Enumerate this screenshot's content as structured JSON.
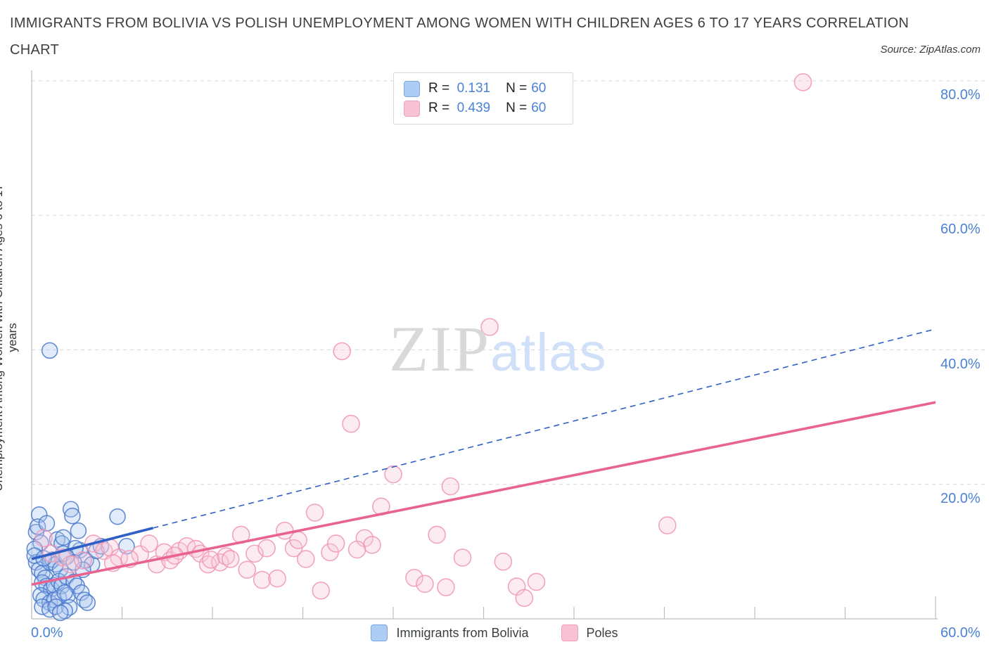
{
  "header": {
    "title": "IMMIGRANTS FROM BOLIVIA VS POLISH UNEMPLOYMENT AMONG WOMEN WITH CHILDREN AGES 6 TO 17 YEARS CORRELATION",
    "subtitle": "CHART",
    "source": "Source: ZipAtlas.com"
  },
  "watermark": {
    "part1": "ZIP",
    "part2": "atlas"
  },
  "stats_legend": {
    "rows": [
      {
        "series": "Immigrants from Bolivia",
        "r_label": "R =",
        "r_value": "0.131",
        "n_label": "N =",
        "n_value": "60"
      },
      {
        "series": "Poles",
        "r_label": "R =",
        "r_value": "0.439",
        "n_label": "N =",
        "n_value": "60"
      }
    ]
  },
  "bottom_legend": {
    "items": [
      {
        "label": "Immigrants from Bolivia",
        "color": "blue"
      },
      {
        "label": "Poles",
        "color": "pink"
      }
    ]
  },
  "axes": {
    "y_title": "Unemployment Among Women with Children Ages 6 to 17 years",
    "x_min_label": "0.0%",
    "x_max_label": "60.0%",
    "y_tick_labels": [
      "20.0%",
      "40.0%",
      "60.0%",
      "80.0%"
    ]
  },
  "colors": {
    "accent_blue": "#4b82d6",
    "point_blue_stroke": "#4a79cc",
    "point_blue_fill": "#a8c6ee",
    "point_pink_stroke": "#f095b5",
    "point_pink_fill": "#f7c9da",
    "trend_blue": "#2f5fc4",
    "trend_pink": "#e8648f",
    "gridline": "#d8d8d8",
    "axis_line": "#bdbdbd",
    "title_text": "#3c4043"
  },
  "chart_data": {
    "type": "scatter",
    "title": "Immigrants from Bolivia vs Polish Unemployment Among Women with Children Ages 6 to 17 years",
    "xlabel": "Immigrants from Bolivia (%)",
    "ylabel": "Unemployment Among Women with Children Ages 6 to 17 years (%)",
    "xlim": [
      0,
      60
    ],
    "ylim": [
      0,
      81.6
    ],
    "x_ticks_every": 6,
    "y_gridlines": [
      20,
      40,
      60,
      80
    ],
    "grid": true,
    "legend_position": "top-center",
    "series": [
      {
        "name": "Immigrants from Bolivia",
        "R": 0.131,
        "N": 60,
        "marker_radius": 11,
        "points": [
          [
            1.2,
            39.9
          ],
          [
            0.5,
            15.5
          ],
          [
            2.6,
            16.3
          ],
          [
            2.7,
            15.3
          ],
          [
            0.3,
            12.9
          ],
          [
            0.6,
            11.3
          ],
          [
            0.2,
            10.4
          ],
          [
            1.7,
            11.8
          ],
          [
            2.0,
            11.2
          ],
          [
            2.1,
            12.1
          ],
          [
            3.1,
            13.1
          ],
          [
            3.2,
            10.2
          ],
          [
            0.3,
            8.4
          ],
          [
            0.5,
            7.3
          ],
          [
            0.7,
            6.8
          ],
          [
            0.9,
            6.1
          ],
          [
            1.2,
            8.4
          ],
          [
            1.4,
            8.8
          ],
          [
            1.6,
            8.1
          ],
          [
            1.9,
            7.4
          ],
          [
            0.7,
            5.4
          ],
          [
            1.0,
            4.9
          ],
          [
            1.3,
            4.4
          ],
          [
            1.5,
            5.0
          ],
          [
            1.8,
            5.6
          ],
          [
            2.0,
            4.9
          ],
          [
            0.6,
            3.5
          ],
          [
            0.8,
            2.9
          ],
          [
            1.2,
            2.4
          ],
          [
            1.5,
            2.8
          ],
          [
            1.8,
            3.1
          ],
          [
            0.7,
            1.8
          ],
          [
            1.2,
            1.4
          ],
          [
            1.6,
            1.8
          ],
          [
            2.4,
            3.5
          ],
          [
            2.5,
            1.7
          ],
          [
            3.6,
            8.7
          ],
          [
            4.0,
            8.1
          ],
          [
            3.4,
            7.3
          ],
          [
            4.3,
            10.1
          ],
          [
            4.6,
            10.8
          ],
          [
            5.7,
            15.2
          ],
          [
            6.3,
            10.8
          ],
          [
            2.9,
            10.5
          ],
          [
            0.2,
            9.4
          ],
          [
            0.8,
            9.0
          ],
          [
            2.1,
            9.7
          ],
          [
            2.3,
            9.2
          ],
          [
            2.8,
            8.4
          ],
          [
            2.3,
            6.3
          ],
          [
            2.8,
            5.5
          ],
          [
            3.0,
            4.9
          ],
          [
            3.3,
            3.9
          ],
          [
            3.5,
            2.8
          ],
          [
            2.2,
            3.9
          ],
          [
            3.7,
            2.4
          ],
          [
            2.2,
            1.2
          ],
          [
            1.9,
            0.9
          ],
          [
            0.4,
            13.7
          ],
          [
            1.0,
            14.2
          ]
        ]
      },
      {
        "name": "Poles",
        "R": 0.439,
        "N": 60,
        "marker_radius": 12,
        "points": [
          [
            51.2,
            79.8
          ],
          [
            30.4,
            43.4
          ],
          [
            20.6,
            39.8
          ],
          [
            21.2,
            29.0
          ],
          [
            24.0,
            21.5
          ],
          [
            27.8,
            19.7
          ],
          [
            42.2,
            13.9
          ],
          [
            0.8,
            12.0
          ],
          [
            1.3,
            9.7
          ],
          [
            2.1,
            9.1
          ],
          [
            2.6,
            8.1
          ],
          [
            3.4,
            8.7
          ],
          [
            4.1,
            11.2
          ],
          [
            4.8,
            10.1
          ],
          [
            5.2,
            10.6
          ],
          [
            5.8,
            9.1
          ],
          [
            7.2,
            9.6
          ],
          [
            7.8,
            11.2
          ],
          [
            8.3,
            8.1
          ],
          [
            8.8,
            9.9
          ],
          [
            9.2,
            8.7
          ],
          [
            9.8,
            10.1
          ],
          [
            10.3,
            10.8
          ],
          [
            10.9,
            10.4
          ],
          [
            11.2,
            9.7
          ],
          [
            11.7,
            8.1
          ],
          [
            12.5,
            8.4
          ],
          [
            11.9,
            8.8
          ],
          [
            12.9,
            9.3
          ],
          [
            13.2,
            8.9
          ],
          [
            13.9,
            12.5
          ],
          [
            14.3,
            7.3
          ],
          [
            14.8,
            9.7
          ],
          [
            15.3,
            5.8
          ],
          [
            15.6,
            10.5
          ],
          [
            16.3,
            6.0
          ],
          [
            16.8,
            13.1
          ],
          [
            17.4,
            10.5
          ],
          [
            17.7,
            11.7
          ],
          [
            18.2,
            8.9
          ],
          [
            18.8,
            15.8
          ],
          [
            19.2,
            4.2
          ],
          [
            19.8,
            9.9
          ],
          [
            20.2,
            11.2
          ],
          [
            22.1,
            12.0
          ],
          [
            22.6,
            11.0
          ],
          [
            23.2,
            16.7
          ],
          [
            25.4,
            6.1
          ],
          [
            26.1,
            5.2
          ],
          [
            27.5,
            4.7
          ],
          [
            26.9,
            12.5
          ],
          [
            28.6,
            9.1
          ],
          [
            31.3,
            8.5
          ],
          [
            32.2,
            4.8
          ],
          [
            33.5,
            5.5
          ],
          [
            32.7,
            3.1
          ],
          [
            6.5,
            8.9
          ],
          [
            5.4,
            8.3
          ],
          [
            9.5,
            9.4
          ],
          [
            21.6,
            10.3
          ]
        ]
      }
    ],
    "trend_lines": [
      {
        "series": "Immigrants from Bolivia",
        "style": "solid",
        "from": [
          0,
          8.9
        ],
        "to": [
          8.05,
          13.5
        ]
      },
      {
        "series": "Immigrants from Bolivia",
        "style": "dashed",
        "from": [
          8.05,
          13.5
        ],
        "to": [
          60,
          43.1
        ]
      },
      {
        "series": "Poles",
        "style": "solid",
        "from": [
          0,
          5.1
        ],
        "to": [
          60,
          32.2
        ]
      }
    ]
  }
}
